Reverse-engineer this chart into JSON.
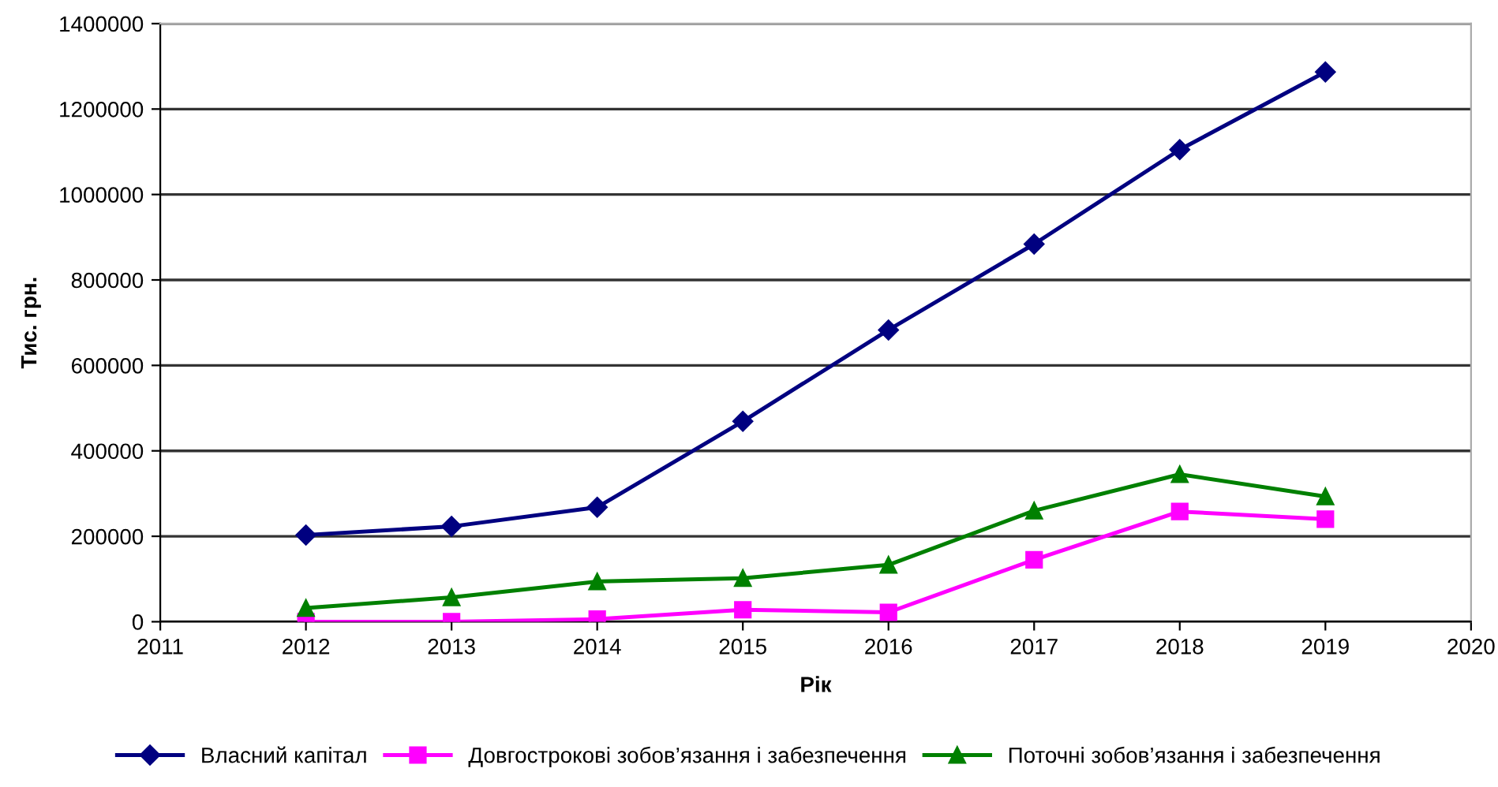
{
  "chart_data": {
    "type": "line",
    "xlabel": "Рік",
    "ylabel": "Тис. грн.",
    "x": [
      2012,
      2013,
      2014,
      2015,
      2016,
      2017,
      2018,
      2019
    ],
    "series": [
      {
        "name": "Власний капітал",
        "color": "#000080",
        "marker": "diamond",
        "values": [
          203000,
          223000,
          268000,
          469000,
          683000,
          884000,
          1105000,
          1287000
        ]
      },
      {
        "name": "Довгострокові зобов’язання і забезпечення",
        "color": "#ff00ff",
        "marker": "square",
        "values": [
          0,
          0,
          6000,
          28000,
          22000,
          145000,
          258000,
          240000
        ]
      },
      {
        "name": "Поточні зобов’язання і забезпечення",
        "color": "#008000",
        "marker": "triangle",
        "values": [
          32000,
          57000,
          94000,
          102000,
          133000,
          260000,
          345000,
          293000
        ]
      }
    ],
    "xlim": [
      2011,
      2020
    ],
    "xticks": [
      2011,
      2012,
      2013,
      2014,
      2015,
      2016,
      2017,
      2018,
      2019,
      2020
    ],
    "ylim": [
      0,
      1400000
    ],
    "yticks": [
      0,
      200000,
      400000,
      600000,
      800000,
      1000000,
      1200000,
      1400000
    ],
    "grid": "y",
    "legend": "bottom",
    "line_style": "solid"
  }
}
